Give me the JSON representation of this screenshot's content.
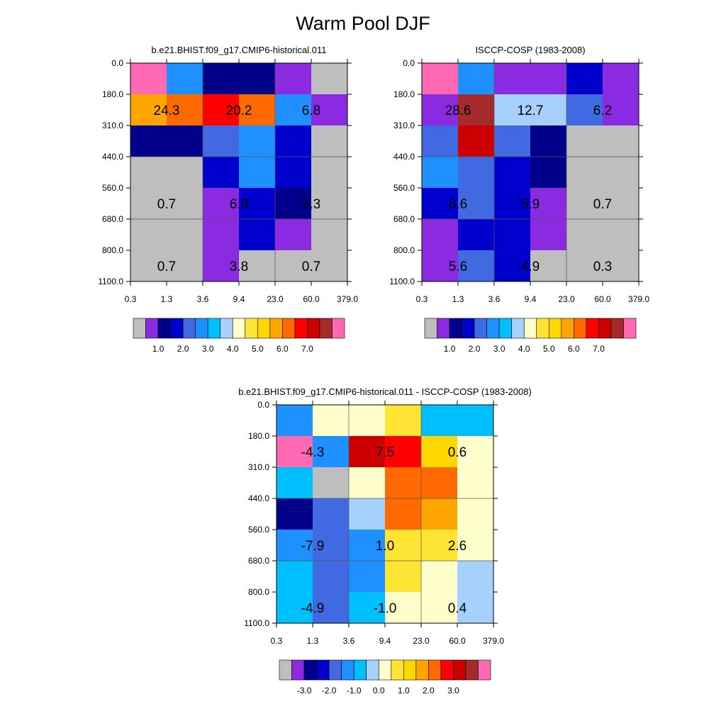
{
  "title": "Warm Pool DJF",
  "panels": [
    {
      "subtitle": "b.e21.BHIST.f09_g17.CMIP6-historical.011"
    },
    {
      "subtitle": "ISCCP-COSP (1983-2008)"
    },
    {
      "subtitle": "b.e21.BHIST.f09_g17.CMIP6-historical.011 - ISCCP-COSP (1983-2008)"
    }
  ],
  "chart_data": [
    {
      "type": "heatmap",
      "title": "b.e21.BHIST.f09_g17.CMIP6-historical.011",
      "x_tick_labels": [
        "0.3",
        "1.3",
        "3.6",
        "9.4",
        "23.0",
        "60.0",
        "379.0"
      ],
      "y_tick_labels": [
        "0.0",
        "180.0",
        "310.0",
        "440.0",
        "560.0",
        "680.0",
        "800.0",
        "1100.0"
      ],
      "cell_colors": [
        [
          "#ff69b4",
          "#1e90ff",
          "#00008b",
          "#00008b",
          "#8a2be2",
          "#bebebe"
        ],
        [
          "#ffa500",
          "#ff6a00",
          "#ff0000",
          "#ff6a00",
          "#1e90ff",
          "#8a2be2"
        ],
        [
          "#00008b",
          "#00008b",
          "#4169e1",
          "#1e90ff",
          "#0000cd",
          "#bebebe"
        ],
        [
          "#bebebe",
          "#bebebe",
          "#0000cd",
          "#1e90ff",
          "#0000cd",
          "#bebebe"
        ],
        [
          "#bebebe",
          "#bebebe",
          "#8a2be2",
          "#0000cd",
          "#00008b",
          "#bebebe"
        ],
        [
          "#bebebe",
          "#bebebe",
          "#8a2be2",
          "#0000cd",
          "#8a2be2",
          "#bebebe"
        ],
        [
          "#bebebe",
          "#bebebe",
          "#8a2be2",
          "#bebebe",
          "#bebebe",
          "#bebebe"
        ]
      ],
      "annotations": [
        {
          "row": 1,
          "col": 0,
          "label": "24.3"
        },
        {
          "row": 1,
          "col": 2,
          "label": "20.2"
        },
        {
          "row": 1,
          "col": 4,
          "label": "6.8"
        },
        {
          "row": 4,
          "col": 0,
          "label": "0.7"
        },
        {
          "row": 4,
          "col": 2,
          "label": "6.9"
        },
        {
          "row": 4,
          "col": 4,
          "label": "3.3"
        },
        {
          "row": 6,
          "col": 0,
          "label": "0.7"
        },
        {
          "row": 6,
          "col": 2,
          "label": "3.8"
        },
        {
          "row": 6,
          "col": 4,
          "label": "0.7"
        }
      ],
      "colorbar": {
        "colors": [
          "#bebebe",
          "#8a2be2",
          "#00008b",
          "#0000cd",
          "#4169e1",
          "#1e90ff",
          "#00bfff",
          "#a6d1ff",
          "#ffffcc",
          "#ffe433",
          "#ffd700",
          "#ffa500",
          "#ff6a00",
          "#ff0000",
          "#cd0000",
          "#a52a2a",
          "#ff69b4"
        ],
        "labels": [
          "1.0",
          "2.0",
          "3.0",
          "4.0",
          "5.0",
          "6.0",
          "7.0"
        ]
      }
    },
    {
      "type": "heatmap",
      "title": "ISCCP-COSP (1983-2008)",
      "x_tick_labels": [
        "0.3",
        "1.3",
        "3.6",
        "9.4",
        "23.0",
        "60.0",
        "379.0"
      ],
      "y_tick_labels": [
        "0.0",
        "180.0",
        "310.0",
        "440.0",
        "560.0",
        "680.0",
        "800.0",
        "1100.0"
      ],
      "cell_colors": [
        [
          "#ff69b4",
          "#1e90ff",
          "#8a2be2",
          "#8a2be2",
          "#0000cd",
          "#8a2be2"
        ],
        [
          "#8a2be2",
          "#a52a2a",
          "#a6d1ff",
          "#a6d1ff",
          "#4169e1",
          "#8a2be2"
        ],
        [
          "#4169e1",
          "#cd0000",
          "#4169e1",
          "#00008b",
          "#bebebe",
          "#bebebe"
        ],
        [
          "#1e90ff",
          "#4169e1",
          "#0000cd",
          "#00008b",
          "#bebebe",
          "#bebebe"
        ],
        [
          "#0000cd",
          "#4169e1",
          "#0000cd",
          "#8a2be2",
          "#bebebe",
          "#bebebe"
        ],
        [
          "#8a2be2",
          "#0000cd",
          "#0000cd",
          "#8a2be2",
          "#bebebe",
          "#bebebe"
        ],
        [
          "#8a2be2",
          "#4169e1",
          "#0000cd",
          "#bebebe",
          "#bebebe",
          "#bebebe"
        ]
      ],
      "annotations": [
        {
          "row": 1,
          "col": 0,
          "label": "28.6"
        },
        {
          "row": 1,
          "col": 2,
          "label": "12.7"
        },
        {
          "row": 1,
          "col": 4,
          "label": "6.2"
        },
        {
          "row": 4,
          "col": 0,
          "label": "8.6"
        },
        {
          "row": 4,
          "col": 2,
          "label": "5.9"
        },
        {
          "row": 4,
          "col": 4,
          "label": "0.7"
        },
        {
          "row": 6,
          "col": 0,
          "label": "5.6"
        },
        {
          "row": 6,
          "col": 2,
          "label": "4.9"
        },
        {
          "row": 6,
          "col": 4,
          "label": "0.3"
        }
      ],
      "colorbar": {
        "colors": [
          "#bebebe",
          "#8a2be2",
          "#00008b",
          "#0000cd",
          "#4169e1",
          "#1e90ff",
          "#00bfff",
          "#a6d1ff",
          "#ffffcc",
          "#ffe433",
          "#ffd700",
          "#ffa500",
          "#ff6a00",
          "#ff0000",
          "#cd0000",
          "#a52a2a",
          "#ff69b4"
        ],
        "labels": [
          "1.0",
          "2.0",
          "3.0",
          "4.0",
          "5.0",
          "6.0",
          "7.0"
        ]
      }
    },
    {
      "type": "heatmap",
      "title": "b.e21.BHIST.f09_g17.CMIP6-historical.011 - ISCCP-COSP (1983-2008)",
      "x_tick_labels": [
        "0.3",
        "1.3",
        "3.6",
        "9.4",
        "23.0",
        "60.0",
        "379.0"
      ],
      "y_tick_labels": [
        "0.0",
        "180.0",
        "310.0",
        "440.0",
        "560.0",
        "680.0",
        "800.0",
        "1100.0"
      ],
      "cell_colors": [
        [
          "#1e90ff",
          "#ffffcc",
          "#ffffcc",
          "#ffe433",
          "#00bfff",
          "#00bfff"
        ],
        [
          "#ff69b4",
          "#1e90ff",
          "#cd0000",
          "#ff0000",
          "#ffd700",
          "#ffffcc"
        ],
        [
          "#00bfff",
          "#bebebe",
          "#ffffcc",
          "#ff6a00",
          "#ff6a00",
          "#ffffcc"
        ],
        [
          "#00008b",
          "#4169e1",
          "#a6d1ff",
          "#ff6a00",
          "#ffa500",
          "#ffffcc"
        ],
        [
          "#1e90ff",
          "#4169e1",
          "#1e90ff",
          "#ffe433",
          "#ffe433",
          "#ffffcc"
        ],
        [
          "#00bfff",
          "#4169e1",
          "#1e90ff",
          "#ffe433",
          "#ffffcc",
          "#a6d1ff"
        ],
        [
          "#00bfff",
          "#4169e1",
          "#00bfff",
          "#ffffcc",
          "#ffffcc",
          "#a6d1ff"
        ]
      ],
      "annotations": [
        {
          "row": 1,
          "col": 0,
          "label": "-4.3"
        },
        {
          "row": 1,
          "col": 2,
          "label": "7.5"
        },
        {
          "row": 1,
          "col": 4,
          "label": "0.6"
        },
        {
          "row": 4,
          "col": 0,
          "label": "-7.9"
        },
        {
          "row": 4,
          "col": 2,
          "label": "1.0"
        },
        {
          "row": 4,
          "col": 4,
          "label": "2.6"
        },
        {
          "row": 6,
          "col": 0,
          "label": "-4.9"
        },
        {
          "row": 6,
          "col": 2,
          "label": "-1.0"
        },
        {
          "row": 6,
          "col": 4,
          "label": "0.4"
        }
      ],
      "colorbar": {
        "colors": [
          "#bebebe",
          "#8a2be2",
          "#00008b",
          "#0000cd",
          "#4169e1",
          "#1e90ff",
          "#00bfff",
          "#a6d1ff",
          "#ffffcc",
          "#ffe433",
          "#ffd700",
          "#ffa500",
          "#ff6a00",
          "#ff0000",
          "#cd0000",
          "#a52a2a",
          "#ff69b4"
        ],
        "labels": [
          "-3.0",
          "-2.0",
          "-1.0",
          "0.0",
          "1.0",
          "2.0",
          "3.0"
        ]
      }
    }
  ]
}
